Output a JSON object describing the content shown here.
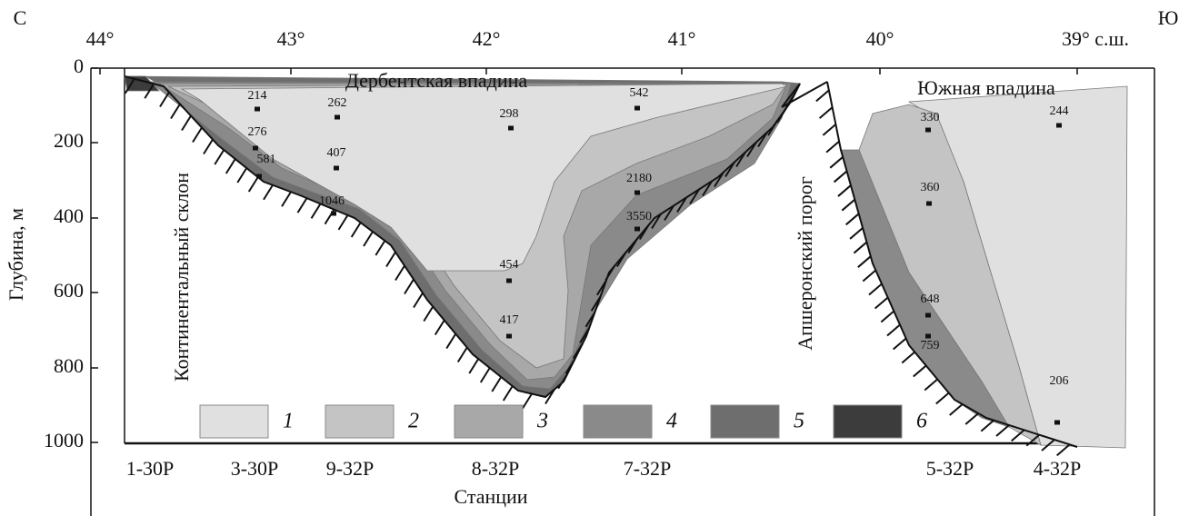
{
  "corners": {
    "north": "С",
    "south": "Ю"
  },
  "latitude_axis": {
    "ticks": [
      "44°",
      "43°",
      "42°",
      "41°",
      "40°",
      "39° с.ш."
    ]
  },
  "depth_axis": {
    "title": "Глубина, м",
    "ticks": [
      "0",
      "200",
      "400",
      "600",
      "800",
      "1000"
    ]
  },
  "stations": {
    "title": "Станции",
    "labels": [
      "1-30Р",
      "3-30Р",
      "9-32Р",
      "8-32Р",
      "7-32Р",
      "5-32Р",
      "4-32Р"
    ]
  },
  "regions": [
    "Дербентская впадина",
    "Южная впадина",
    "Континентальный склон",
    "Апшеронский порог"
  ],
  "samples": [
    "214",
    "262",
    "276",
    "407",
    "581",
    "1046",
    "298",
    "542",
    "2180",
    "3550",
    "454",
    "417",
    "330",
    "244",
    "360",
    "648",
    "759",
    "206"
  ],
  "legend": [
    "1",
    "2",
    "3",
    "4",
    "5",
    "6"
  ]
}
